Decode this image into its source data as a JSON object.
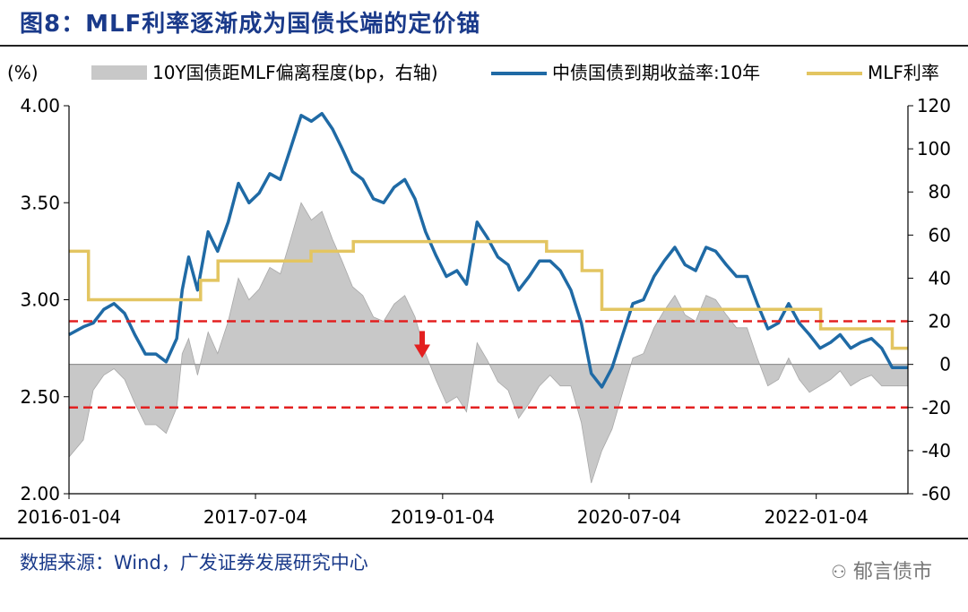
{
  "header": {
    "title": "图8：MLF利率逐渐成为国债长端的定价锚"
  },
  "footer": {
    "source": "数据来源：Wind，广发证券发展研究中心",
    "watermark": "郁言债市"
  },
  "colors": {
    "spread": "#c8c8c8",
    "yield": "#1f6aa5",
    "mlf": "#e3c561",
    "ref": "#e32020",
    "arrow": "#e32020"
  },
  "chart_data": {
    "type": "line",
    "ylabel_left": "(%)",
    "left_axis": {
      "min": 2.0,
      "max": 4.0,
      "ticks": [
        "2.00",
        "2.50",
        "3.00",
        "3.50",
        "4.00"
      ]
    },
    "right_axis": {
      "min": -60,
      "max": 120,
      "ticks": [
        "-60",
        "-40",
        "-20",
        "0",
        "20",
        "40",
        "60",
        "80",
        "100",
        "120"
      ]
    },
    "x_tick_labels": [
      "2016-01-04",
      "2017-07-04",
      "2019-01-04",
      "2020-07-04",
      "2022-01-04"
    ],
    "x_range": [
      "2016-01-04",
      "2022-09-30"
    ],
    "legend": [
      "10Y国债距MLF偏离程度(bp，右轴)",
      "中债国债到期收益率:10年",
      "MLF利率"
    ],
    "reference_lines_right_axis": [
      20,
      -20
    ],
    "yield_10y": {
      "dates": [
        "2016-01-04",
        "2016-02-15",
        "2016-03-15",
        "2016-04-15",
        "2016-05-15",
        "2016-06-15",
        "2016-07-15",
        "2016-08-15",
        "2016-09-15",
        "2016-10-15",
        "2016-11-15",
        "2016-12-01",
        "2016-12-20",
        "2017-01-15",
        "2017-02-15",
        "2017-03-15",
        "2017-04-15",
        "2017-05-15",
        "2017-06-15",
        "2017-07-15",
        "2017-08-15",
        "2017-09-15",
        "2017-10-15",
        "2017-11-15",
        "2017-12-15",
        "2018-01-15",
        "2018-02-15",
        "2018-03-15",
        "2018-04-15",
        "2018-05-15",
        "2018-06-15",
        "2018-07-15",
        "2018-08-15",
        "2018-09-15",
        "2018-10-15",
        "2018-11-15",
        "2018-12-15",
        "2019-01-15",
        "2019-02-15",
        "2019-03-15",
        "2019-04-15",
        "2019-05-15",
        "2019-06-15",
        "2019-07-15",
        "2019-08-15",
        "2019-09-15",
        "2019-10-15",
        "2019-11-15",
        "2019-12-15",
        "2020-01-15",
        "2020-02-15",
        "2020-03-15",
        "2020-04-15",
        "2020-05-15",
        "2020-06-15",
        "2020-07-15",
        "2020-08-15",
        "2020-09-15",
        "2020-10-15",
        "2020-11-15",
        "2020-12-15",
        "2021-01-15",
        "2021-02-15",
        "2021-03-15",
        "2021-04-15",
        "2021-05-15",
        "2021-06-15",
        "2021-07-15",
        "2021-08-15",
        "2021-09-15",
        "2021-10-15",
        "2021-11-15",
        "2021-12-15",
        "2022-01-15",
        "2022-02-15",
        "2022-03-15",
        "2022-04-15",
        "2022-05-15",
        "2022-06-15",
        "2022-07-15",
        "2022-08-15",
        "2022-09-30"
      ],
      "values": [
        2.82,
        2.86,
        2.88,
        2.95,
        2.98,
        2.93,
        2.82,
        2.72,
        2.72,
        2.68,
        2.8,
        3.05,
        3.22,
        3.05,
        3.35,
        3.25,
        3.4,
        3.6,
        3.5,
        3.55,
        3.65,
        3.62,
        3.78,
        3.95,
        3.92,
        3.96,
        3.88,
        3.78,
        3.66,
        3.62,
        3.52,
        3.5,
        3.58,
        3.62,
        3.52,
        3.35,
        3.23,
        3.12,
        3.15,
        3.08,
        3.4,
        3.32,
        3.22,
        3.18,
        3.05,
        3.12,
        3.2,
        3.2,
        3.15,
        3.05,
        2.88,
        2.62,
        2.55,
        2.65,
        2.82,
        2.98,
        3.0,
        3.12,
        3.2,
        3.27,
        3.18,
        3.15,
        3.27,
        3.25,
        3.18,
        3.12,
        3.12,
        2.98,
        2.85,
        2.88,
        2.98,
        2.88,
        2.82,
        2.75,
        2.78,
        2.82,
        2.75,
        2.78,
        2.8,
        2.75,
        2.65,
        2.65
      ]
    },
    "mlf_rate": {
      "dates": [
        "2016-01-04",
        "2016-03-01",
        "2017-01-24",
        "2017-03-16",
        "2017-12-14",
        "2018-04-17",
        "2019-11-05",
        "2020-02-17",
        "2020-04-15",
        "2022-01-17",
        "2022-08-15",
        "2022-09-30"
      ],
      "values": [
        3.25,
        3.0,
        3.1,
        3.2,
        3.25,
        3.3,
        3.25,
        3.15,
        2.95,
        2.85,
        2.75,
        2.75
      ]
    },
    "spread_bp": {
      "dates": [
        "2016-01-04",
        "2016-02-15",
        "2016-03-15",
        "2016-04-15",
        "2016-05-15",
        "2016-06-15",
        "2016-07-15",
        "2016-08-15",
        "2016-09-15",
        "2016-10-15",
        "2016-11-15",
        "2016-12-01",
        "2016-12-20",
        "2017-01-15",
        "2017-02-15",
        "2017-03-15",
        "2017-04-15",
        "2017-05-15",
        "2017-06-15",
        "2017-07-15",
        "2017-08-15",
        "2017-09-15",
        "2017-10-15",
        "2017-11-15",
        "2017-12-15",
        "2018-01-15",
        "2018-02-15",
        "2018-03-15",
        "2018-04-15",
        "2018-05-15",
        "2018-06-15",
        "2018-07-15",
        "2018-08-15",
        "2018-09-15",
        "2018-10-15",
        "2018-11-15",
        "2018-12-15",
        "2019-01-15",
        "2019-02-15",
        "2019-03-15",
        "2019-04-15",
        "2019-05-15",
        "2019-06-15",
        "2019-07-15",
        "2019-08-15",
        "2019-09-15",
        "2019-10-15",
        "2019-11-15",
        "2019-12-15",
        "2020-01-15",
        "2020-02-15",
        "2020-03-15",
        "2020-04-15",
        "2020-05-15",
        "2020-06-15",
        "2020-07-15",
        "2020-08-15",
        "2020-09-15",
        "2020-10-15",
        "2020-11-15",
        "2020-12-15",
        "2021-01-15",
        "2021-02-15",
        "2021-03-15",
        "2021-04-15",
        "2021-05-15",
        "2021-06-15",
        "2021-07-15",
        "2021-08-15",
        "2021-09-15",
        "2021-10-15",
        "2021-11-15",
        "2021-12-15",
        "2022-01-15",
        "2022-02-15",
        "2022-03-15",
        "2022-04-15",
        "2022-05-15",
        "2022-06-15",
        "2022-07-15",
        "2022-08-15",
        "2022-09-30"
      ],
      "values": [
        -43,
        -35,
        -12,
        -5,
        -2,
        -7,
        -18,
        -28,
        -28,
        -32,
        -20,
        5,
        12,
        -5,
        15,
        5,
        20,
        40,
        30,
        35,
        45,
        42,
        58,
        75,
        67,
        71,
        58,
        48,
        36,
        32,
        22,
        20,
        28,
        32,
        22,
        5,
        -7,
        -18,
        -15,
        -22,
        10,
        2,
        -8,
        -12,
        -25,
        -18,
        -10,
        -5,
        -10,
        -10,
        -27,
        -55,
        -40,
        -30,
        -13,
        3,
        5,
        17,
        25,
        32,
        23,
        20,
        32,
        30,
        23,
        17,
        17,
        3,
        -10,
        -7,
        3,
        -7,
        -13,
        -10,
        -7,
        -3,
        -10,
        -7,
        -5,
        -10,
        -10,
        -10
      ]
    },
    "annotation": {
      "type": "down-arrow",
      "date": "2018-11-05",
      "value": 2.7
    }
  }
}
